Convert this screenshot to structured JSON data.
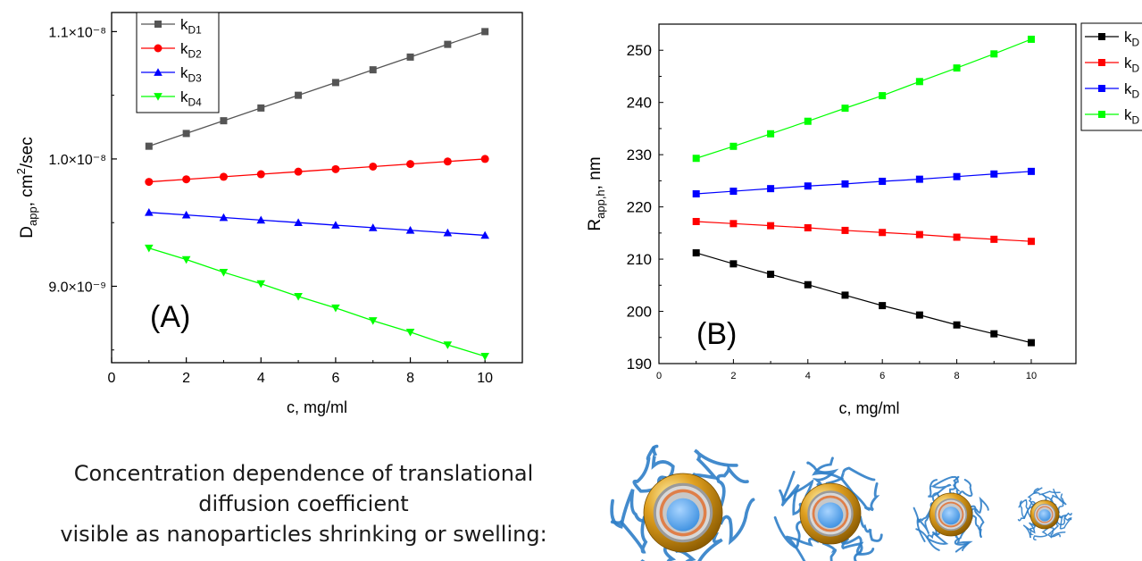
{
  "chart_data": [
    {
      "type": "line",
      "panel_label": "(A)",
      "xlabel": "c, mg/ml",
      "ylabel": "D",
      "ylabel_sub": "app",
      "ylabel_rest": ", cm",
      "ylabel_sup": "2",
      "ylabel_end": "/sec",
      "xlim": [
        0,
        11
      ],
      "ylim": [
        8.4e-09,
        1.115e-08
      ],
      "xticks": [
        0,
        2,
        4,
        6,
        8,
        10
      ],
      "xtick_labels": [
        "0",
        "2",
        "4",
        "6",
        "8",
        "10"
      ],
      "yticks": [
        9e-09,
        1e-08,
        1.1e-08
      ],
      "ytick_labels": [
        "9.0×10⁻⁹",
        "1.0×10⁻⁸",
        "1.1×10⁻⁸"
      ],
      "legend_position": "top-left",
      "x": [
        1,
        2,
        3,
        4,
        5,
        6,
        7,
        8,
        9,
        10
      ],
      "series": [
        {
          "name": "k",
          "sub": "D1",
          "marker": "square",
          "color": "#555555",
          "values": [
            1.01e-08,
            1.02e-08,
            1.03e-08,
            1.04e-08,
            1.05e-08,
            1.06e-08,
            1.07e-08,
            1.08e-08,
            1.09e-08,
            1.1e-08
          ]
        },
        {
          "name": "k",
          "sub": "D2",
          "marker": "circle",
          "color": "#ff0000",
          "values": [
            9.82e-09,
            9.84e-09,
            9.86e-09,
            9.88e-09,
            9.9e-09,
            9.92e-09,
            9.94e-09,
            9.96e-09,
            9.98e-09,
            1e-08
          ]
        },
        {
          "name": "k",
          "sub": "D3",
          "marker": "triangle-up",
          "color": "#0000ff",
          "values": [
            9.58e-09,
            9.56e-09,
            9.54e-09,
            9.52e-09,
            9.5e-09,
            9.48e-09,
            9.46e-09,
            9.44e-09,
            9.42e-09,
            9.4e-09
          ]
        },
        {
          "name": "k",
          "sub": "D4",
          "marker": "triangle-down",
          "color": "#00ff00",
          "values": [
            9.3e-09,
            9.21e-09,
            9.11e-09,
            9.02e-09,
            8.92e-09,
            8.83e-09,
            8.73e-09,
            8.64e-09,
            8.54e-09,
            8.45e-09
          ]
        }
      ]
    },
    {
      "type": "line",
      "panel_label": "(B)",
      "xlabel": "c, mg/ml",
      "ylabel": "R",
      "ylabel_sub": "app,h",
      "ylabel_rest": ", nm",
      "xlim": [
        0,
        11.2
      ],
      "ylim": [
        190,
        255
      ],
      "xticks": [
        0,
        2,
        4,
        6,
        8,
        10
      ],
      "xtick_labels": [
        "0",
        "2",
        "4",
        "6",
        "8",
        "10"
      ],
      "yticks": [
        190,
        200,
        210,
        220,
        230,
        240,
        250
      ],
      "ytick_labels": [
        "190",
        "200",
        "210",
        "220",
        "230",
        "240",
        "250"
      ],
      "legend_position": "right",
      "x": [
        1,
        2,
        3,
        4,
        5,
        6,
        7,
        8,
        9,
        10
      ],
      "series": [
        {
          "name": "k",
          "sub": "D",
          "marker": "square",
          "color": "#000000",
          "values": [
            211.2,
            209.1,
            207.1,
            205.1,
            203.1,
            201.1,
            199.3,
            197.4,
            195.7,
            194.0
          ]
        },
        {
          "name": "k",
          "sub": "D",
          "marker": "square",
          "color": "#ff0000",
          "values": [
            217.2,
            216.8,
            216.4,
            216.0,
            215.5,
            215.1,
            214.7,
            214.2,
            213.8,
            213.4
          ]
        },
        {
          "name": "k",
          "sub": "D",
          "marker": "square",
          "color": "#0000ff",
          "values": [
            222.5,
            223.0,
            223.5,
            224.0,
            224.4,
            224.9,
            225.3,
            225.8,
            226.3,
            226.8
          ]
        },
        {
          "name": "k",
          "sub": "D",
          "marker": "square",
          "color": "#00ff00",
          "values": [
            229.3,
            231.6,
            234.0,
            236.4,
            238.9,
            241.3,
            244.0,
            246.6,
            249.3,
            252.1
          ]
        }
      ]
    }
  ],
  "caption": {
    "line1": "Concentration dependence of translational",
    "line2": "diffusion coefficient",
    "line3": "visible as nanoparticles shrinking or swelling:"
  },
  "nanoparticles": {
    "count": 4,
    "shell_color": "#e0a020",
    "core_color": "#3b8fe0",
    "chain_color": "#2f7ec8"
  }
}
